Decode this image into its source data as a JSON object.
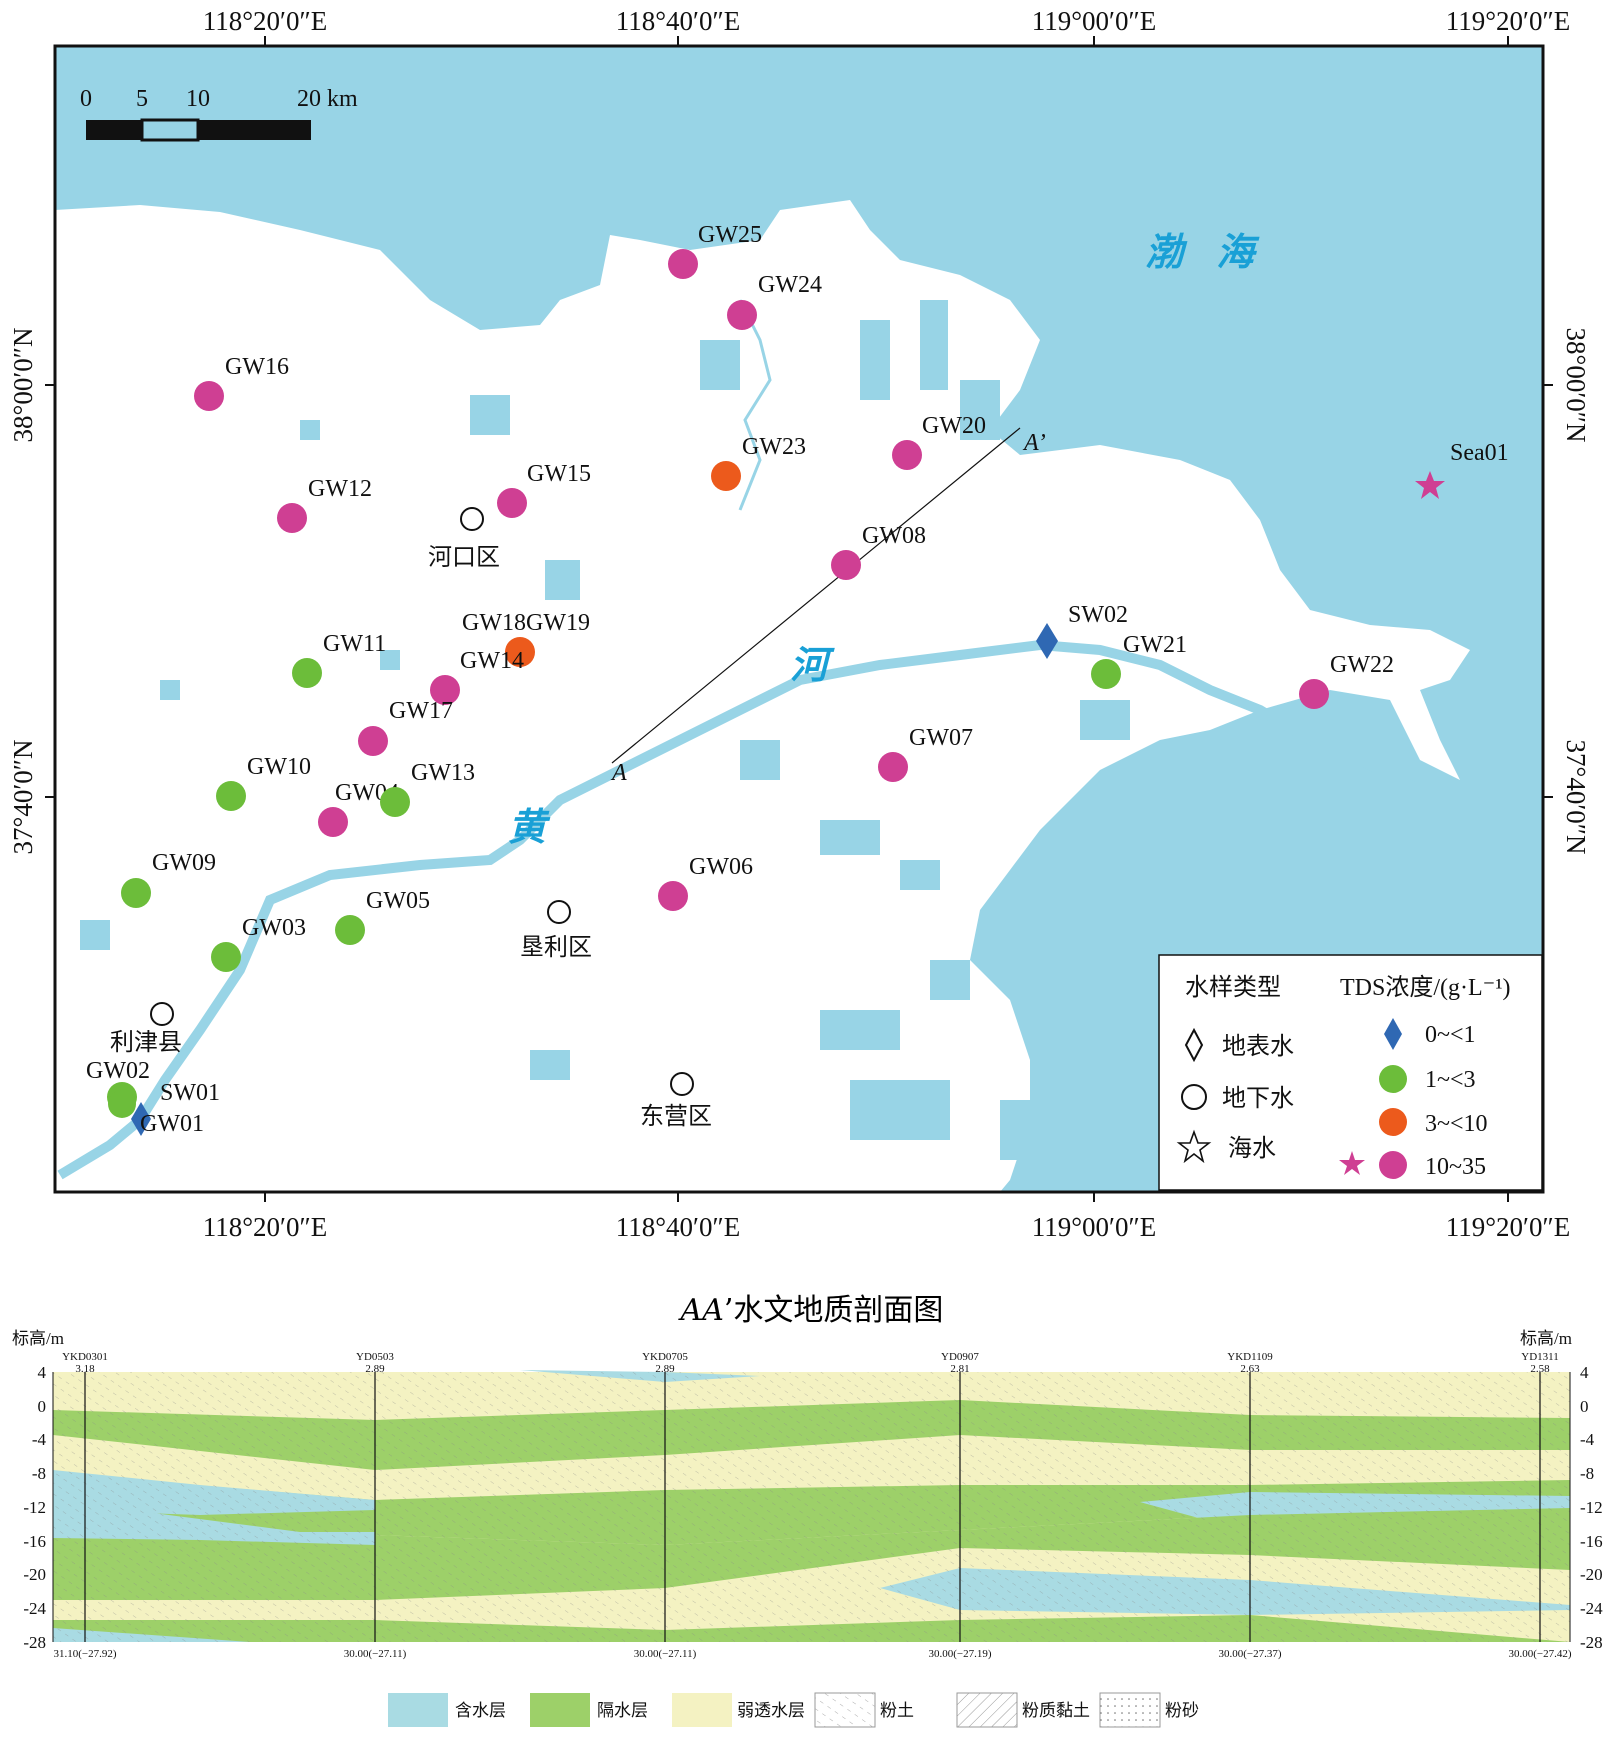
{
  "map": {
    "lon_labels": [
      "118°20′0″E",
      "118°40′0″E",
      "119°00′0″E",
      "119°20′0″E"
    ],
    "lat_labels": [
      "38°00′0″N",
      "37°40′0″N"
    ],
    "scalebar": {
      "ticks": [
        "0",
        "5",
        "10",
        "20 km"
      ]
    },
    "sea_label": "渤  海",
    "river_labels": [
      "黄",
      "河"
    ],
    "section_line": {
      "start": "A",
      "end": "A’"
    },
    "cities": [
      {
        "name": "河口区"
      },
      {
        "name": "垦利区"
      },
      {
        "name": "利津县"
      },
      {
        "name": "东营区"
      }
    ],
    "samples": [
      {
        "id": "GW25",
        "type": "groundwater",
        "tds_class": "10~35"
      },
      {
        "id": "GW24",
        "type": "groundwater",
        "tds_class": "10~35"
      },
      {
        "id": "GW16",
        "type": "groundwater",
        "tds_class": "10~35"
      },
      {
        "id": "GW23",
        "type": "groundwater",
        "tds_class": "3~<10"
      },
      {
        "id": "GW20",
        "type": "groundwater",
        "tds_class": "10~35"
      },
      {
        "id": "GW15",
        "type": "groundwater",
        "tds_class": "10~35"
      },
      {
        "id": "GW12",
        "type": "groundwater",
        "tds_class": "10~35"
      },
      {
        "id": "GW08",
        "type": "groundwater",
        "tds_class": "10~35"
      },
      {
        "id": "GW18GW19",
        "type": "groundwater",
        "tds_class": "3~<10"
      },
      {
        "id": "GW14",
        "type": "groundwater",
        "tds_class": "10~35"
      },
      {
        "id": "GW11",
        "type": "groundwater",
        "tds_class": "1~<3"
      },
      {
        "id": "GW17",
        "type": "groundwater",
        "tds_class": "10~35"
      },
      {
        "id": "SW02",
        "type": "surface",
        "tds_class": "0~<1"
      },
      {
        "id": "GW21",
        "type": "groundwater",
        "tds_class": "1~<3"
      },
      {
        "id": "GW22",
        "type": "groundwater",
        "tds_class": "10~35"
      },
      {
        "id": "GW07",
        "type": "groundwater",
        "tds_class": "10~35"
      },
      {
        "id": "GW10",
        "type": "groundwater",
        "tds_class": "1~<3"
      },
      {
        "id": "GW04",
        "type": "groundwater",
        "tds_class": "10~35"
      },
      {
        "id": "GW13",
        "type": "groundwater",
        "tds_class": "1~<3"
      },
      {
        "id": "GW09",
        "type": "groundwater",
        "tds_class": "1~<3"
      },
      {
        "id": "GW06",
        "type": "groundwater",
        "tds_class": "10~35"
      },
      {
        "id": "GW05",
        "type": "groundwater",
        "tds_class": "1~<3"
      },
      {
        "id": "GW03",
        "type": "groundwater",
        "tds_class": "1~<3"
      },
      {
        "id": "GW02",
        "type": "groundwater",
        "tds_class": "1~<3"
      },
      {
        "id": "SW01",
        "type": "surface",
        "tds_class": "0~<1"
      },
      {
        "id": "GW01",
        "type": "groundwater",
        "tds_class": "1~<3"
      },
      {
        "id": "Sea01",
        "type": "seawater",
        "tds_class": "10~35"
      }
    ],
    "legend": {
      "type_title": "水样类型",
      "tds_title": "TDS浓度/(g·L⁻¹)",
      "types": [
        "地表水",
        "地下水",
        "海水"
      ],
      "tds_classes": [
        "0~<1",
        "1~<3",
        "3~<10",
        "10~35"
      ],
      "colors": {
        "0~<1": "#2f68b3",
        "1~<3": "#6cbd3a",
        "3~<10": "#ec5a1c",
        "10~35": "#cf3f93"
      }
    }
  },
  "section": {
    "title_italic": "AA",
    "title_rest": "’水文地质剖面图",
    "y_axis_label_left": "标高/m",
    "y_axis_label_right": "标高/m",
    "y_ticks": [
      "4",
      "0",
      "-4",
      "-8",
      "-12",
      "-16",
      "-20",
      "-24",
      "-28"
    ],
    "boreholes": [
      {
        "name": "YKD0301",
        "elev": "3.18",
        "depth": "31.10(−27.92)"
      },
      {
        "name": "YD0503",
        "elev": "2.89",
        "depth": "30.00(−27.11)"
      },
      {
        "name": "YKD0705",
        "elev": "2.89",
        "depth": "30.00(−27.11)"
      },
      {
        "name": "YD0907",
        "elev": "2.81",
        "depth": "30.00(−27.19)"
      },
      {
        "name": "YKD1109",
        "elev": "2.63",
        "depth": "30.00(−27.37)"
      },
      {
        "name": "YD1311",
        "elev": "2.58",
        "depth": "30.00(−27.42)"
      }
    ],
    "legend": [
      "含水层",
      "隔水层",
      "弱透水层",
      "粉土",
      "粉质黏土",
      "粉砂"
    ],
    "colors": {
      "aquifer": "#a9dbe3",
      "aquitard": "#9dd069",
      "weak": "#f4f2c2"
    }
  }
}
